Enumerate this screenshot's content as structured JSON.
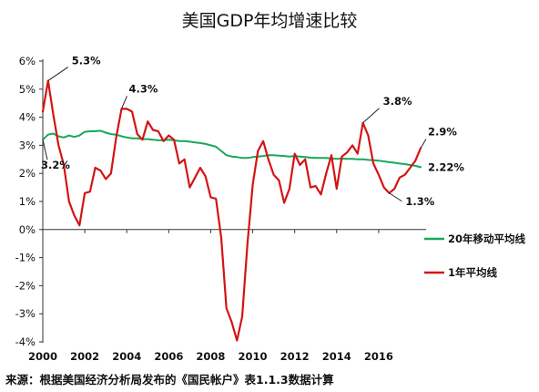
{
  "chart_data": {
    "type": "line",
    "title": "美国GDP年均增速比较",
    "source": "来源：根据美国经济分析局发布的《国民帐户》表1.1.3数据计算",
    "xlabel": "",
    "ylabel": "",
    "xlim": [
      2000,
      2018
    ],
    "ylim": [
      -4,
      6
    ],
    "x_ticks": [
      "2000",
      "2002",
      "2004",
      "2006",
      "2008",
      "2010",
      "2012",
      "2014",
      "2016"
    ],
    "y_ticks": [
      "6%",
      "5%",
      "4%",
      "3%",
      "2%",
      "1%",
      "0%",
      "-1%",
      "-2%",
      "-3%",
      "-4%"
    ],
    "grid": false,
    "legend_position": "right",
    "colors": {
      "ma20": "#1aa75a",
      "yoy": "#d41414"
    },
    "series": [
      {
        "name": "1年平均线",
        "key": "yoy",
        "x": [
          2000.0,
          2000.25,
          2000.5,
          2000.75,
          2001.0,
          2001.25,
          2001.5,
          2001.75,
          2002.0,
          2002.25,
          2002.5,
          2002.75,
          2003.0,
          2003.25,
          2003.5,
          2003.75,
          2004.0,
          2004.25,
          2004.5,
          2004.75,
          2005.0,
          2005.25,
          2005.5,
          2005.75,
          2006.0,
          2006.25,
          2006.5,
          2006.75,
          2007.0,
          2007.25,
          2007.5,
          2007.75,
          2008.0,
          2008.25,
          2008.5,
          2008.75,
          2009.0,
          2009.25,
          2009.5,
          2009.75,
          2010.0,
          2010.25,
          2010.5,
          2010.75,
          2011.0,
          2011.25,
          2011.5,
          2011.75,
          2012.0,
          2012.25,
          2012.5,
          2012.75,
          2013.0,
          2013.25,
          2013.5,
          2013.75,
          2014.0,
          2014.25,
          2014.5,
          2014.75,
          2015.0,
          2015.25,
          2015.5,
          2015.75,
          2016.0,
          2016.25,
          2016.5,
          2016.75,
          2017.0,
          2017.25,
          2017.5,
          2017.75,
          2018.0
        ],
        "values": [
          4.2,
          5.3,
          4.1,
          3.0,
          2.3,
          1.0,
          0.5,
          0.15,
          1.3,
          1.35,
          2.2,
          2.1,
          1.8,
          2.0,
          3.3,
          4.3,
          4.3,
          4.2,
          3.4,
          3.2,
          3.85,
          3.55,
          3.5,
          3.15,
          3.35,
          3.2,
          2.35,
          2.5,
          1.5,
          1.85,
          2.2,
          1.9,
          1.15,
          1.1,
          -0.3,
          -2.8,
          -3.3,
          -3.95,
          -3.1,
          -0.5,
          1.6,
          2.8,
          3.15,
          2.5,
          1.95,
          1.75,
          0.95,
          1.45,
          2.7,
          2.3,
          2.5,
          1.5,
          1.55,
          1.25,
          2.0,
          2.65,
          1.45,
          2.6,
          2.75,
          3.0,
          2.7,
          3.8,
          3.35,
          2.35,
          1.95,
          1.5,
          1.3,
          1.45,
          1.85,
          1.95,
          2.2,
          2.45,
          2.9
        ]
      },
      {
        "name": "20年移动平均线",
        "key": "ma20",
        "x": [
          2000.0,
          2000.25,
          2000.5,
          2000.75,
          2001.0,
          2001.25,
          2001.5,
          2001.75,
          2002.0,
          2002.25,
          2002.5,
          2002.75,
          2003.0,
          2003.25,
          2003.5,
          2003.75,
          2004.0,
          2004.25,
          2004.5,
          2004.75,
          2005.0,
          2005.25,
          2005.5,
          2005.75,
          2006.0,
          2006.25,
          2006.5,
          2006.75,
          2007.0,
          2007.25,
          2007.5,
          2007.75,
          2008.0,
          2008.25,
          2008.5,
          2008.75,
          2009.0,
          2009.25,
          2009.5,
          2009.75,
          2010.0,
          2010.25,
          2010.5,
          2010.75,
          2011.0,
          2011.25,
          2011.5,
          2011.75,
          2012.0,
          2012.25,
          2012.5,
          2012.75,
          2013.0,
          2013.25,
          2013.5,
          2013.75,
          2014.0,
          2014.25,
          2014.5,
          2014.75,
          2015.0,
          2015.25,
          2015.5,
          2015.75,
          2016.0,
          2016.25,
          2016.5,
          2016.75,
          2017.0,
          2017.25,
          2017.5,
          2017.75,
          2018.0
        ],
        "values": [
          3.2,
          3.38,
          3.42,
          3.32,
          3.28,
          3.35,
          3.3,
          3.35,
          3.48,
          3.5,
          3.5,
          3.52,
          3.45,
          3.4,
          3.38,
          3.32,
          3.28,
          3.25,
          3.25,
          3.22,
          3.22,
          3.2,
          3.18,
          3.18,
          3.2,
          3.18,
          3.15,
          3.15,
          3.13,
          3.1,
          3.08,
          3.05,
          3.0,
          2.95,
          2.8,
          2.65,
          2.6,
          2.58,
          2.55,
          2.55,
          2.58,
          2.6,
          2.62,
          2.65,
          2.65,
          2.63,
          2.62,
          2.6,
          2.62,
          2.6,
          2.58,
          2.56,
          2.55,
          2.55,
          2.55,
          2.53,
          2.52,
          2.53,
          2.52,
          2.52,
          2.5,
          2.5,
          2.48,
          2.47,
          2.45,
          2.43,
          2.4,
          2.38,
          2.35,
          2.33,
          2.3,
          2.27,
          2.22
        ]
      }
    ],
    "annotations": [
      {
        "text": "5.3%",
        "series": "yoy",
        "x": 2000.25,
        "y": 5.3
      },
      {
        "text": "3.2%",
        "series": "ma20",
        "x": 2000.0,
        "y": 3.2
      },
      {
        "text": "4.3%",
        "series": "yoy",
        "x": 2003.75,
        "y": 4.3
      },
      {
        "text": "3.8%",
        "series": "yoy",
        "x": 2015.25,
        "y": 3.8
      },
      {
        "text": "2.9%",
        "series": "yoy",
        "x": 2018.0,
        "y": 2.9
      },
      {
        "text": "2.22%",
        "series": "ma20",
        "x": 2018.0,
        "y": 2.22
      },
      {
        "text": "1.3%",
        "series": "yoy",
        "x": 2016.5,
        "y": 1.3
      }
    ]
  }
}
